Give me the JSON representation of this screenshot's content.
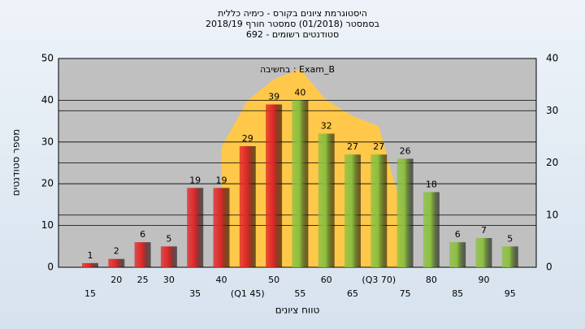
{
  "chart_data": {
    "type": "bar",
    "title": [
      "היסטוגרמת ציונים בקורס - כימיה כללית",
      "בסמסטר (01/2018) סמסטר חורף 2018/19",
      "סטודנטים רשומים - 692"
    ],
    "annotation": "בחשיבה : Exam_B",
    "y_label": "מספר סטודנטים",
    "x_label": "טווח ציונים",
    "categories": [
      "15",
      "20",
      "25",
      "30",
      "35",
      "40",
      "(Q1 45)",
      "50",
      "55",
      "60",
      "65",
      "(Q3 70)",
      "75",
      "80",
      "85",
      "90",
      "95"
    ],
    "values": [
      1,
      2,
      6,
      5,
      19,
      19,
      29,
      39,
      40,
      32,
      27,
      27,
      26,
      18,
      6,
      7,
      5
    ],
    "colors": [
      "#e02828",
      "#e02828",
      "#e02828",
      "#e02828",
      "#e02828",
      "#e02828",
      "#e02828",
      "#e02828",
      "#8cc040",
      "#8cc040",
      "#8cc040",
      "#8cc040",
      "#8cc040",
      "#8cc040",
      "#8cc040",
      "#8cc040",
      "#8cc040"
    ],
    "area": {
      "axis": "y2",
      "color": "#ffc84a",
      "values": [
        null,
        null,
        null,
        null,
        null,
        23,
        32,
        36,
        38,
        32,
        29,
        27,
        9,
        null,
        null,
        null,
        null
      ]
    },
    "ylim": [
      0,
      50
    ],
    "yticks": [
      0,
      10,
      20,
      30,
      40,
      50
    ],
    "y2lim": [
      0,
      40
    ],
    "y2ticks": [
      0,
      10,
      20,
      30,
      40
    ],
    "grid": true
  }
}
